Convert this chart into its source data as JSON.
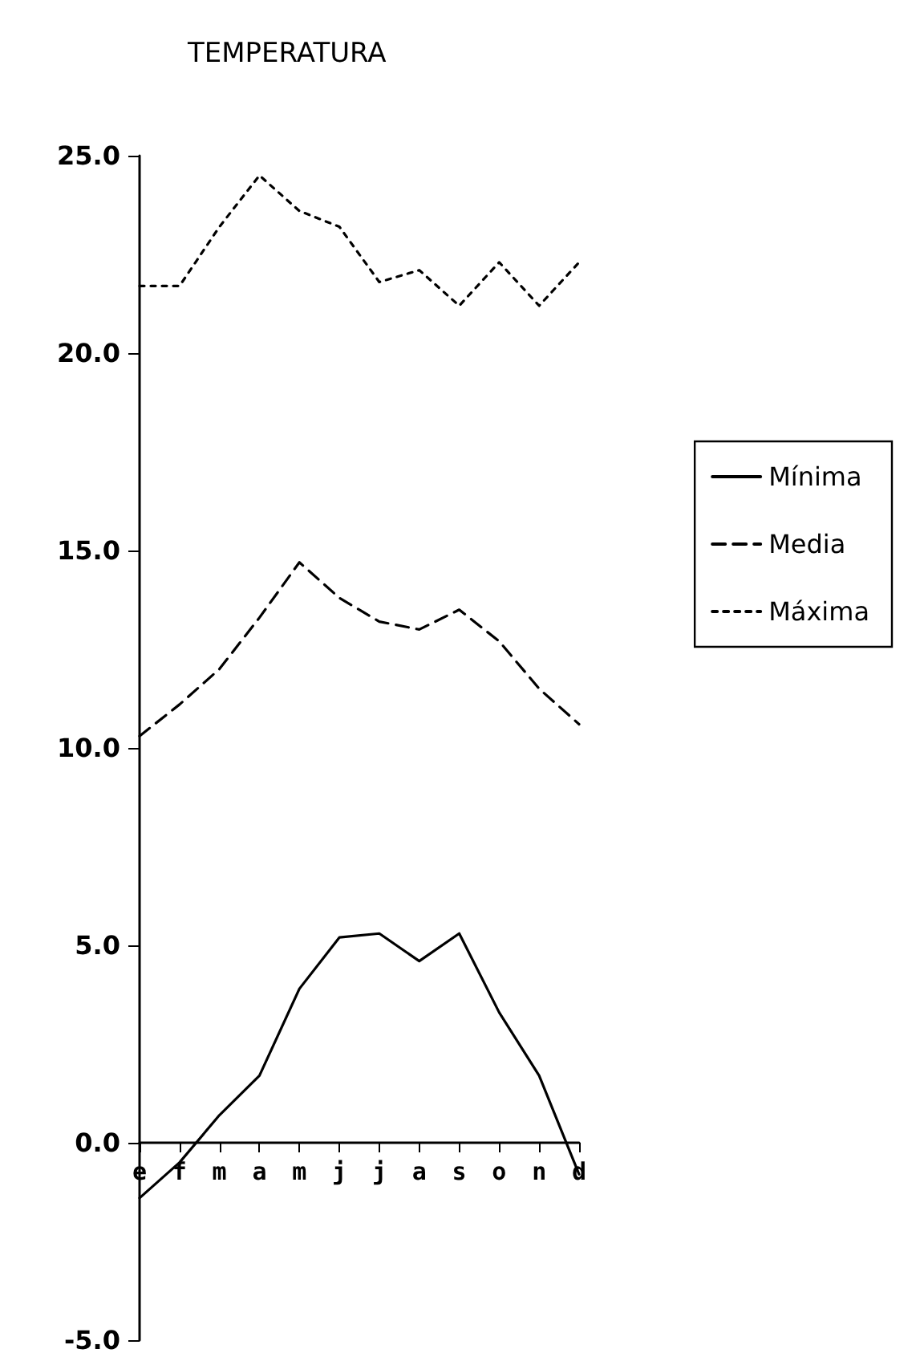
{
  "chart_data": {
    "type": "line",
    "title": "TEMPERATURA",
    "categories": [
      "e",
      "f",
      "m",
      "a",
      "m",
      "j",
      "j",
      "a",
      "s",
      "o",
      "n",
      "d"
    ],
    "series": [
      {
        "name": "Mínima",
        "color": "#000000",
        "line_style": "solid",
        "values": [
          -1.4,
          -0.5,
          0.7,
          1.7,
          3.9,
          5.2,
          5.3,
          4.6,
          5.3,
          3.3,
          1.7,
          -0.8
        ]
      },
      {
        "name": "Media",
        "color": "#000000",
        "line_style": "dashed",
        "values": [
          10.3,
          11.1,
          12.0,
          13.3,
          14.7,
          13.8,
          13.2,
          13.0,
          13.5,
          12.7,
          11.5,
          10.6
        ]
      },
      {
        "name": "Máxima",
        "color": "#000000",
        "line_style": "dotted",
        "values": [
          21.7,
          21.7,
          23.2,
          24.5,
          23.6,
          23.2,
          21.8,
          22.1,
          21.2,
          22.3,
          21.2,
          22.3
        ]
      }
    ],
    "ylim": [
      -5,
      25
    ],
    "yticks": [
      {
        "value": -5,
        "label": "-5.0"
      },
      {
        "value": 0,
        "label": "0.0"
      },
      {
        "value": 5,
        "label": "5.0"
      },
      {
        "value": 10,
        "label": "10.0"
      },
      {
        "value": 15,
        "label": "15.0"
      },
      {
        "value": 20,
        "label": "20.0"
      },
      {
        "value": 25,
        "label": "25.0"
      }
    ],
    "grid": false,
    "legend": "right",
    "marker": "none"
  }
}
